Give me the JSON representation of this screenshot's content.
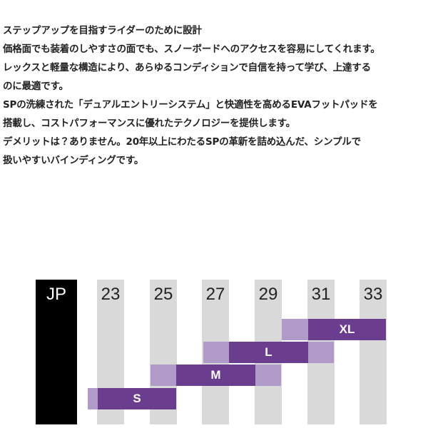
{
  "description": {
    "lines": [
      "ステップアップを目指すライダーのために設計",
      "価格面でも装着のしやすさの面でも、スノーボードへのアクセスを容易にしてくれます。",
      "レックスと軽量な構造により、あらゆるコンディションで自信を持って学び、上達する",
      "のに最適です。",
      "SPの洗練された「デュアルエントリーシステム」と快適性を高めるEVAフットパッドを",
      "搭載し、コストパフォーマンスに優れたテクノロジーを提供します。",
      "デメリットは？ありません。20年以上にわたるSPの革新を詰め込んだ、シンプルで",
      "扱いやすいバインディングです。"
    ]
  },
  "size_chart": {
    "header": "JP",
    "columns": [
      "23",
      "25",
      "27",
      "29",
      "31",
      "33"
    ],
    "sizes": [
      "S",
      "M",
      "L",
      "XL"
    ]
  }
}
